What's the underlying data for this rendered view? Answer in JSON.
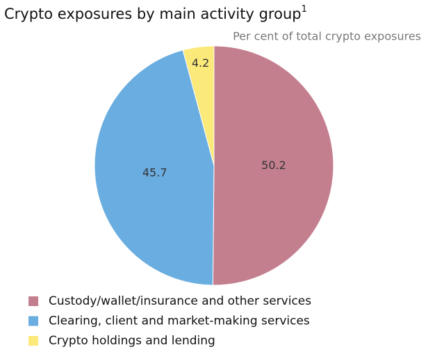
{
  "chart_data": {
    "type": "pie",
    "title": "Crypto exposures by main activity group",
    "title_superscript": "1",
    "subtitle": "Per cent of total crypto exposures",
    "categories": [
      "Custody/wallet/insurance and other services",
      "Clearing, client and market-making services",
      "Crypto holdings and lending"
    ],
    "values": [
      50.2,
      45.7,
      4.2
    ],
    "colors": [
      "#c47f8f",
      "#6aade0",
      "#fbe97a"
    ]
  }
}
